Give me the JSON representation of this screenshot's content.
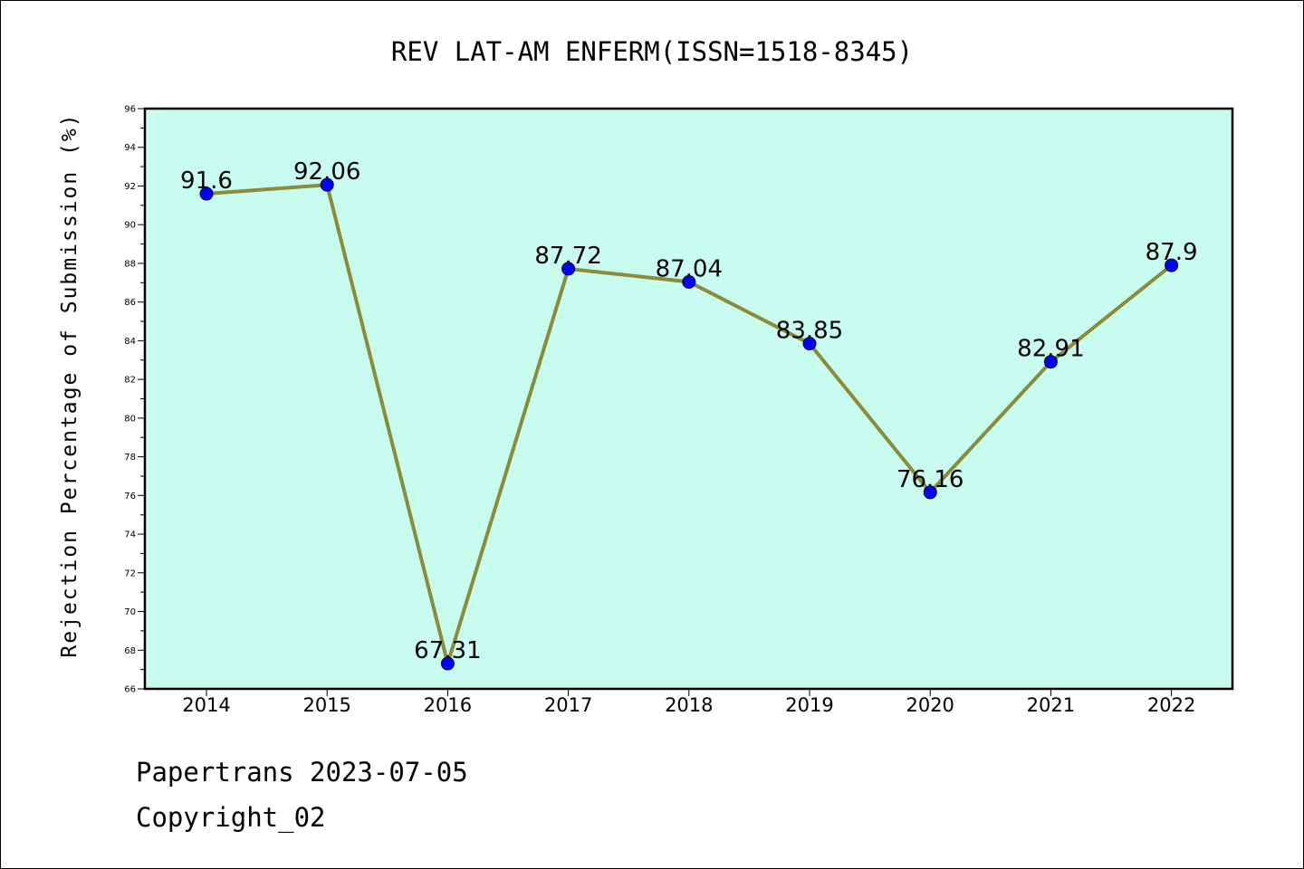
{
  "chart_data": {
    "type": "line",
    "title": "REV LAT-AM ENFERM(ISSN=1518-8345)",
    "xlabel": "",
    "ylabel": "Rejection Percentage of Submission (%)",
    "categories": [
      "2014",
      "2015",
      "2016",
      "2017",
      "2018",
      "2019",
      "2020",
      "2021",
      "2022"
    ],
    "values": [
      91.6,
      92.06,
      67.31,
      87.72,
      87.04,
      83.85,
      76.16,
      82.91,
      87.9
    ],
    "data_labels": [
      "91.6",
      "92.06",
      "67.31",
      "87.72",
      "87.04",
      "83.85",
      "76.16",
      "82.91",
      "87.9"
    ],
    "ylim": [
      66,
      96
    ],
    "yticks": [
      66,
      68,
      70,
      72,
      74,
      76,
      78,
      80,
      82,
      84,
      86,
      88,
      90,
      92,
      94,
      96
    ],
    "grid": false,
    "legend": "none",
    "colors": {
      "plot_background": "#c8fcee",
      "line": "#8b8b3a",
      "marker": "#0000ff",
      "axis": "#000000"
    }
  },
  "footer": {
    "line1": "Papertrans 2023-07-05",
    "line2": "Copyright_02"
  }
}
